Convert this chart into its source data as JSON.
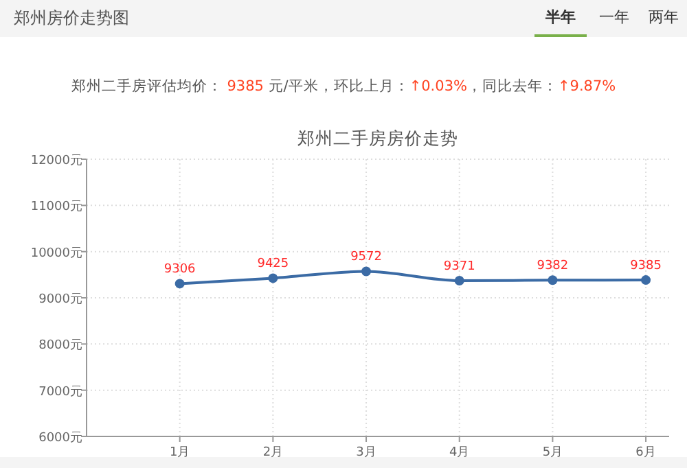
{
  "chart_data": {
    "type": "line",
    "title": "郑州二手房房价走势",
    "subtitle": "郑州二手房评估均价： 9385 元/平米，环比上月：↑0.03%，同比去年：↑9.87%",
    "annotations": [
      "郑州房价走势图",
      "半年",
      "一年",
      "两年"
    ],
    "categories": [
      "1月",
      "2月",
      "3月",
      "4月",
      "5月",
      "6月"
    ],
    "series": [
      {
        "color": "#3b6ba5",
        "values": [
          9306,
          9425,
          9572,
          9371,
          9382,
          9385
        ]
      }
    ],
    "ylim": [
      6000,
      12000
    ],
    "yticks": [
      {
        "value": 6000,
        "label": "6000元"
      },
      {
        "value": 7000,
        "label": "7000元"
      },
      {
        "value": 8000,
        "label": "8000元"
      },
      {
        "value": 9000,
        "label": "9000元"
      },
      {
        "value": 10000,
        "label": "10000元"
      },
      {
        "value": 11000,
        "label": "11000元"
      },
      {
        "value": 12000,
        "label": "12000元"
      }
    ],
    "grid": true,
    "marker": "circle",
    "data_labels": true,
    "line_style": "solid"
  }
}
